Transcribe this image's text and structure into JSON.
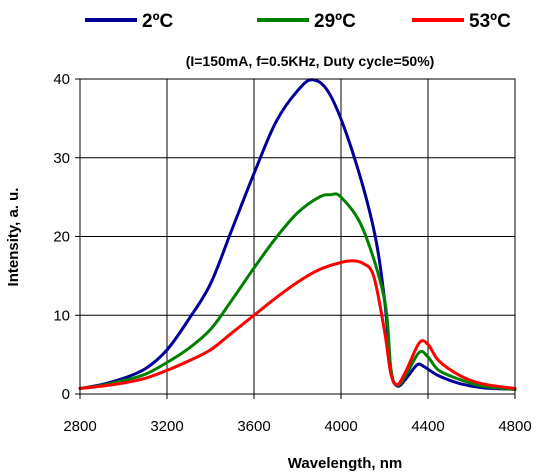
{
  "chart_data": {
    "type": "line",
    "subtitle": "(I=150mA, f=0.5KHz, Duty cycle=50%)",
    "xlabel": "Wavelength,  nm",
    "ylabel": "Intensity, a. u.",
    "xlim": [
      2800,
      4800
    ],
    "ylim": [
      0,
      40
    ],
    "xticks": [
      2800,
      3200,
      3600,
      4000,
      4400,
      4800
    ],
    "yticks": [
      0,
      10,
      20,
      30,
      40
    ],
    "grid": true,
    "legend_position": "top",
    "series": [
      {
        "name": "2ºC",
        "color": "#000099",
        "x": [
          2800,
          2900,
          3000,
          3100,
          3200,
          3300,
          3400,
          3500,
          3600,
          3700,
          3800,
          3870,
          3950,
          4050,
          4150,
          4200,
          4230,
          4260,
          4300,
          4350,
          4380,
          4450,
          4550,
          4650,
          4800
        ],
        "y": [
          0.7,
          1.2,
          2.0,
          3.2,
          5.6,
          9.5,
          14.0,
          21.0,
          28.0,
          34.5,
          38.5,
          39.9,
          38.0,
          31.0,
          21.0,
          12.0,
          3.0,
          1.0,
          2.0,
          3.7,
          3.5,
          2.3,
          1.3,
          0.8,
          0.6
        ]
      },
      {
        "name": "29ºC",
        "color": "#008000",
        "x": [
          2800,
          2900,
          3000,
          3100,
          3200,
          3300,
          3400,
          3500,
          3600,
          3700,
          3800,
          3900,
          3950,
          4000,
          4100,
          4200,
          4230,
          4260,
          4300,
          4360,
          4400,
          4450,
          4550,
          4650,
          4800
        ],
        "y": [
          0.7,
          1.1,
          1.7,
          2.5,
          4.0,
          5.8,
          8.2,
          12.0,
          16.0,
          19.8,
          23.0,
          25.0,
          25.3,
          25.0,
          21.0,
          12.0,
          3.0,
          1.1,
          2.5,
          5.3,
          4.7,
          3.0,
          1.8,
          1.0,
          0.6
        ]
      },
      {
        "name": "53ºC",
        "color": "#ff0000",
        "x": [
          2800,
          2900,
          3000,
          3100,
          3200,
          3300,
          3400,
          3500,
          3600,
          3700,
          3800,
          3900,
          4000,
          4050,
          4100,
          4150,
          4200,
          4230,
          4260,
          4300,
          4360,
          4400,
          4450,
          4550,
          4650,
          4800
        ],
        "y": [
          0.7,
          1.0,
          1.4,
          2.0,
          3.0,
          4.2,
          5.6,
          7.8,
          10.0,
          12.2,
          14.2,
          15.8,
          16.7,
          16.9,
          16.6,
          15.0,
          8.0,
          2.5,
          1.2,
          3.0,
          6.5,
          6.3,
          4.2,
          2.3,
          1.3,
          0.7
        ]
      }
    ]
  }
}
